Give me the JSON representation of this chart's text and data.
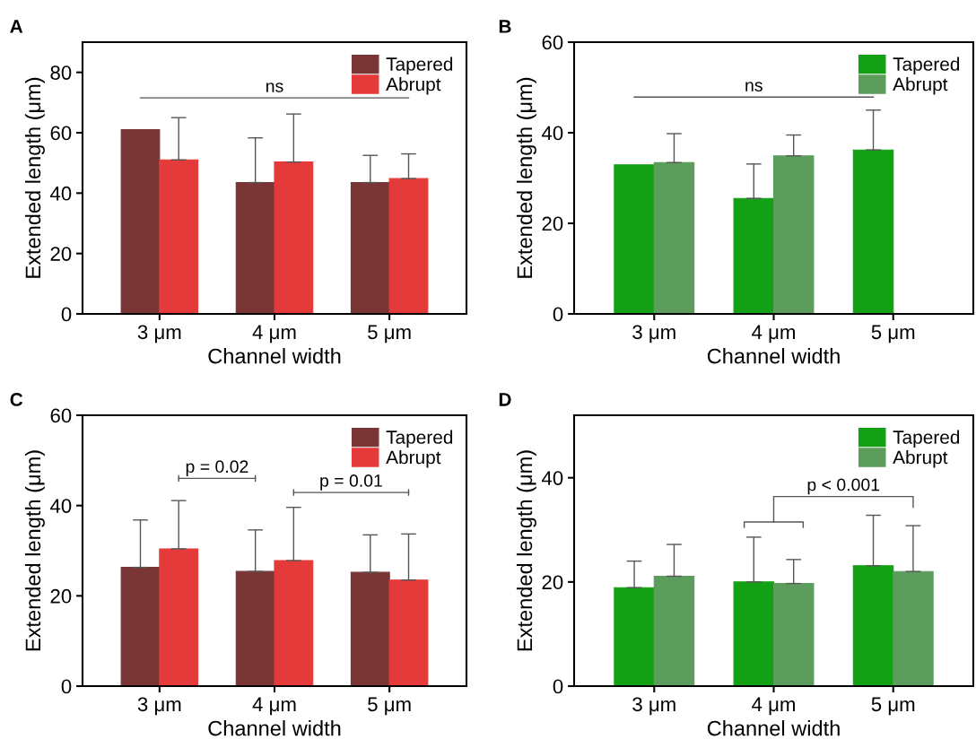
{
  "chart_data": [
    {
      "type": "bar",
      "title": "A",
      "xlabel": "Channel width",
      "ylabel": "Extended length (μm)",
      "categories": [
        "3 μm",
        "4 μm",
        "5 μm"
      ],
      "ylim": [
        0,
        90
      ],
      "yticks": [
        0,
        20,
        40,
        60,
        80
      ],
      "legend": "top right",
      "grid": false,
      "series": [
        {
          "name": "Tapered",
          "color": "#7a3535",
          "values": [
            61,
            43.5,
            43.5
          ],
          "errors": [
            null,
            [
              43.5,
              58.3
            ],
            [
              43.5,
              52.5
            ]
          ]
        },
        {
          "name": "Abrupt",
          "color": "#e53a3a",
          "values": [
            51,
            50.3,
            44.8
          ],
          "errors": [
            [
              51,
              65
            ],
            [
              50.3,
              66.2
            ],
            [
              44.8,
              53
            ]
          ]
        }
      ],
      "annotations": [
        "ns"
      ]
    },
    {
      "type": "bar",
      "title": "B",
      "xlabel": "Channel width",
      "ylabel": "Extended length (μm)",
      "categories": [
        "3 μm",
        "4 μm",
        "5 μm"
      ],
      "ylim": [
        0,
        60
      ],
      "yticks": [
        0,
        20,
        40,
        60
      ],
      "legend": "top right",
      "grid": false,
      "series": [
        {
          "name": "Tapered",
          "color": "#14a014",
          "values": [
            32.9,
            25.5,
            36.2
          ],
          "errors": [
            null,
            [
              25.5,
              33.1
            ],
            [
              36.2,
              45
            ]
          ]
        },
        {
          "name": "Abrupt",
          "color": "#5c9c5c",
          "values": [
            33.4,
            34.9,
            null
          ],
          "errors": [
            [
              33.4,
              39.8
            ],
            [
              34.9,
              39.5
            ],
            null
          ]
        }
      ],
      "annotations": [
        "ns"
      ]
    },
    {
      "type": "bar",
      "title": "C",
      "xlabel": "Channel width",
      "ylabel": "Extended length (μm)",
      "categories": [
        "3 μm",
        "4 μm",
        "5 μm"
      ],
      "ylim": [
        0,
        60
      ],
      "yticks": [
        0,
        20,
        40,
        60
      ],
      "legend": "top right",
      "grid": false,
      "series": [
        {
          "name": "Tapered",
          "color": "#7a3535",
          "values": [
            26.3,
            25.4,
            25.2
          ],
          "errors": [
            [
              26.3,
              36.8
            ],
            [
              25.4,
              34.6
            ],
            [
              25.2,
              33.5
            ]
          ]
        },
        {
          "name": "Abrupt",
          "color": "#e53a3a",
          "values": [
            30.4,
            27.8,
            23.5
          ],
          "errors": [
            [
              30.4,
              41.1
            ],
            [
              27.8,
              39.6
            ],
            [
              23.5,
              33.7
            ]
          ]
        }
      ],
      "annotations": [
        "p = 0.02",
        "p = 0.01"
      ]
    },
    {
      "type": "bar",
      "title": "D",
      "xlabel": "Channel width",
      "ylabel": "Extended length (μm)",
      "categories": [
        "3 μm",
        "4 μm",
        "5 μm"
      ],
      "ylim": [
        0,
        52
      ],
      "yticks": [
        0,
        20,
        40
      ],
      "legend": "top right",
      "grid": false,
      "series": [
        {
          "name": "Tapered",
          "color": "#14a014",
          "values": [
            18.9,
            20.0,
            23.1
          ],
          "errors": [
            [
              18.9,
              24.0
            ],
            [
              20.0,
              28.6
            ],
            [
              23.1,
              32.8
            ]
          ]
        },
        {
          "name": "Abrupt",
          "color": "#5c9c5c",
          "values": [
            21.1,
            19.7,
            22.0
          ],
          "errors": [
            [
              21.1,
              27.2
            ],
            [
              19.7,
              24.3
            ],
            [
              22.0,
              30.8
            ]
          ]
        }
      ],
      "annotations": [
        "p < 0.001"
      ]
    }
  ]
}
